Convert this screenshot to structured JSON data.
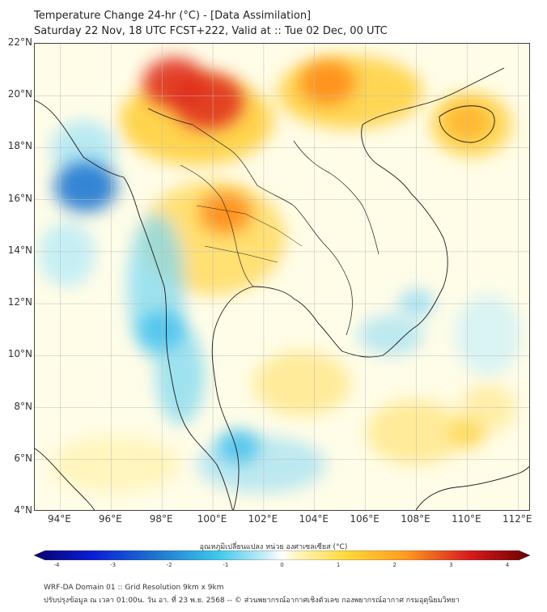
{
  "header": {
    "title_line1": "Temperature Change 24-hr (°C) - [Data Assimilation]",
    "title_line2": "Saturday 22 Nov, 18 UTC FCST+222, Valid at :: Tue 02 Dec, 00 UTC"
  },
  "axes": {
    "lat_labels": [
      "22°N",
      "20°N",
      "18°N",
      "16°N",
      "14°N",
      "12°N",
      "10°N",
      "8°N",
      "6°N",
      "4°N"
    ],
    "lon_labels": [
      "94°E",
      "96°E",
      "98°E",
      "100°E",
      "102°E",
      "104°E",
      "106°E",
      "108°E",
      "110°E",
      "112°E"
    ]
  },
  "colorbar": {
    "label": "อุณหภูมิเปลี่ยนแปลง หน่วย องศาเซลเซียส (°C)",
    "ticks": [
      "-4",
      "-3",
      "-2",
      "-1",
      "0",
      "1",
      "2",
      "3",
      "4"
    ]
  },
  "footer": {
    "line1": "WRF-DA Domain 01 :: Grid Resolution 9km x 9km",
    "line2": "ปรับปรุงข้อมูล ณ เวลา 01:00น. วัน อา. ที่ 23 พ.ย. 2568 -- © ส่วนพยากรณ์อากาศเชิงตัวเลข กองพยากรณ์อากาศ กรมอุตุนิยมวิทยา"
  },
  "colors": {
    "land_border": "#1a1a1a",
    "grid": "#bbbbbb",
    "warm_peak": "#d7191c",
    "cool_peak": "#1f78d1"
  },
  "map_data": {
    "variable": "Temperature change 24-hr (°C)",
    "extent": {
      "lon": [
        93,
        112.5
      ],
      "lat": [
        4,
        22
      ]
    },
    "features": [
      {
        "name": "strong warming core",
        "lon": 99.8,
        "lat": 19.8,
        "value": 3.0
      },
      {
        "name": "warming north Laos / Myanmar",
        "lon": 98.5,
        "lat": 20.5,
        "value": 2.5
      },
      {
        "name": "warming north Vietnam",
        "lon": 104.5,
        "lat": 20.5,
        "value": 2.0
      },
      {
        "name": "warming Hainan",
        "lon": 110.0,
        "lat": 19.0,
        "value": 1.5
      },
      {
        "name": "warming central Thailand",
        "lon": 100.5,
        "lat": 15.5,
        "value": 1.8
      },
      {
        "name": "cooling Bay of Bengal",
        "lon": 95.0,
        "lat": 16.5,
        "value": -2.5
      },
      {
        "name": "cooling Andaman coast",
        "lon": 98.0,
        "lat": 11.0,
        "value": -1.5
      },
      {
        "name": "cooling Gulf of Thailand south",
        "lon": 101.0,
        "lat": 6.5,
        "value": -1.2
      },
      {
        "name": "cooling east of Vietnam",
        "lon": 108.0,
        "lat": 12.0,
        "value": -0.8
      },
      {
        "name": "warming South China Sea",
        "lon": 110.0,
        "lat": 7.0,
        "value": 0.8
      }
    ]
  }
}
